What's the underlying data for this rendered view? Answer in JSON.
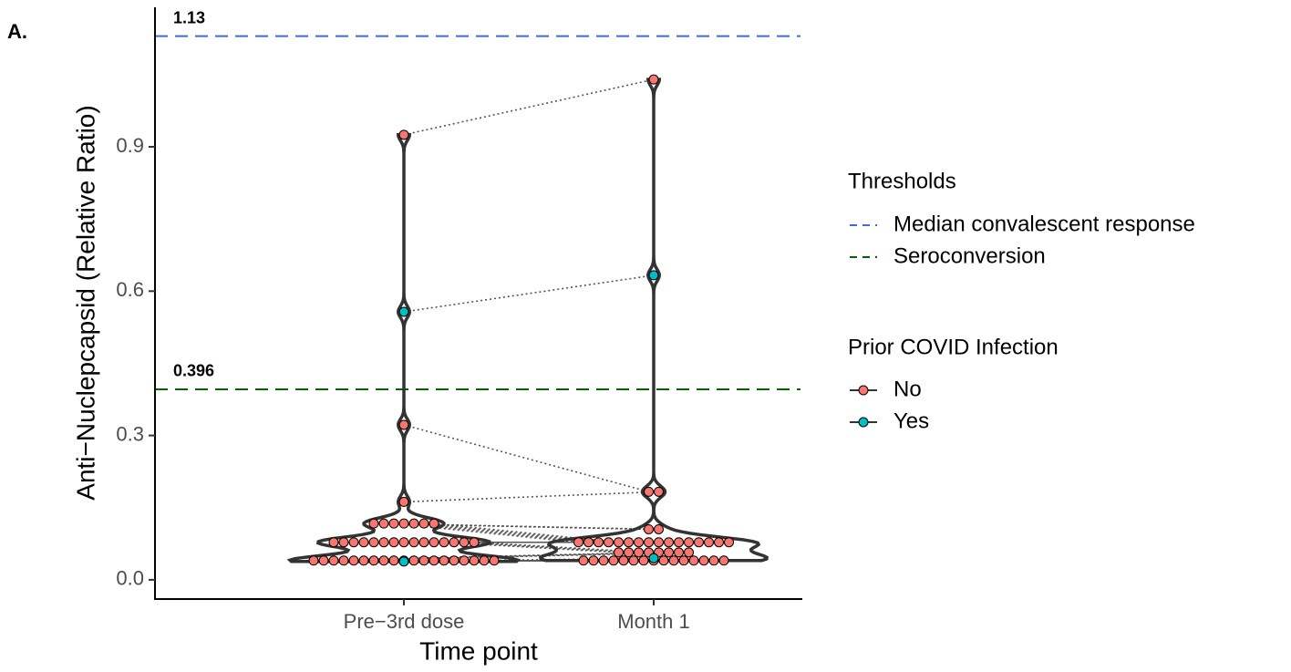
{
  "panel_label": "A.",
  "chart_data": {
    "type": "violin-dot",
    "x_label": "Time point",
    "y_label": "Anti−Nuclepcapsid (Relative Ratio)",
    "categories": [
      "Pre−3rd dose",
      "Month 1"
    ],
    "ylim": [
      -0.04,
      1.19
    ],
    "yticks": [
      {
        "value": 0,
        "label": "0.0"
      },
      0.3,
      0.6,
      0.9
    ],
    "thresholds_title": "Thresholds",
    "thresholds": [
      {
        "name": "Median convalescent response",
        "value": 1.13,
        "color": "#4169e1"
      },
      {
        "name": "Seroconversion",
        "value": 0.396,
        "color": "#006400"
      }
    ],
    "legend_title": "Prior COVID Infection",
    "series": [
      {
        "name": "No",
        "color": "#f8766d",
        "values": [
          [
            0.925,
            0.322,
            0.162,
            0.117,
            0.117,
            0.117,
            0.117,
            0.117,
            0.117,
            0.117,
            0.078,
            0.078,
            0.078,
            0.078,
            0.078,
            0.078,
            0.078,
            0.078,
            0.078,
            0.078,
            0.078,
            0.078,
            0.078,
            0.078,
            0.078,
            0.04,
            0.04,
            0.04,
            0.04,
            0.04,
            0.04,
            0.04,
            0.04,
            0.04,
            0.04,
            0.04,
            0.04,
            0.04,
            0.04,
            0.04,
            0.04,
            0.04,
            0.04,
            0.04
          ],
          [
            1.04,
            0.183,
            0.183,
            0.105,
            0.105,
            0.078,
            0.078,
            0.078,
            0.078,
            0.078,
            0.078,
            0.078,
            0.078,
            0.078,
            0.078,
            0.078,
            0.078,
            0.078,
            0.078,
            0.078,
            0.078,
            0.057,
            0.057,
            0.057,
            0.057,
            0.057,
            0.057,
            0.057,
            0.057,
            0.04,
            0.04,
            0.04,
            0.04,
            0.04,
            0.04,
            0.04,
            0.04,
            0.04,
            0.04,
            0.04,
            0.04,
            0.04,
            0.04,
            0.04
          ]
        ]
      },
      {
        "name": "Yes",
        "color": "#00bfc4",
        "values": [
          [
            0.557,
            0.038
          ],
          [
            0.633,
            0.045
          ]
        ]
      }
    ]
  }
}
